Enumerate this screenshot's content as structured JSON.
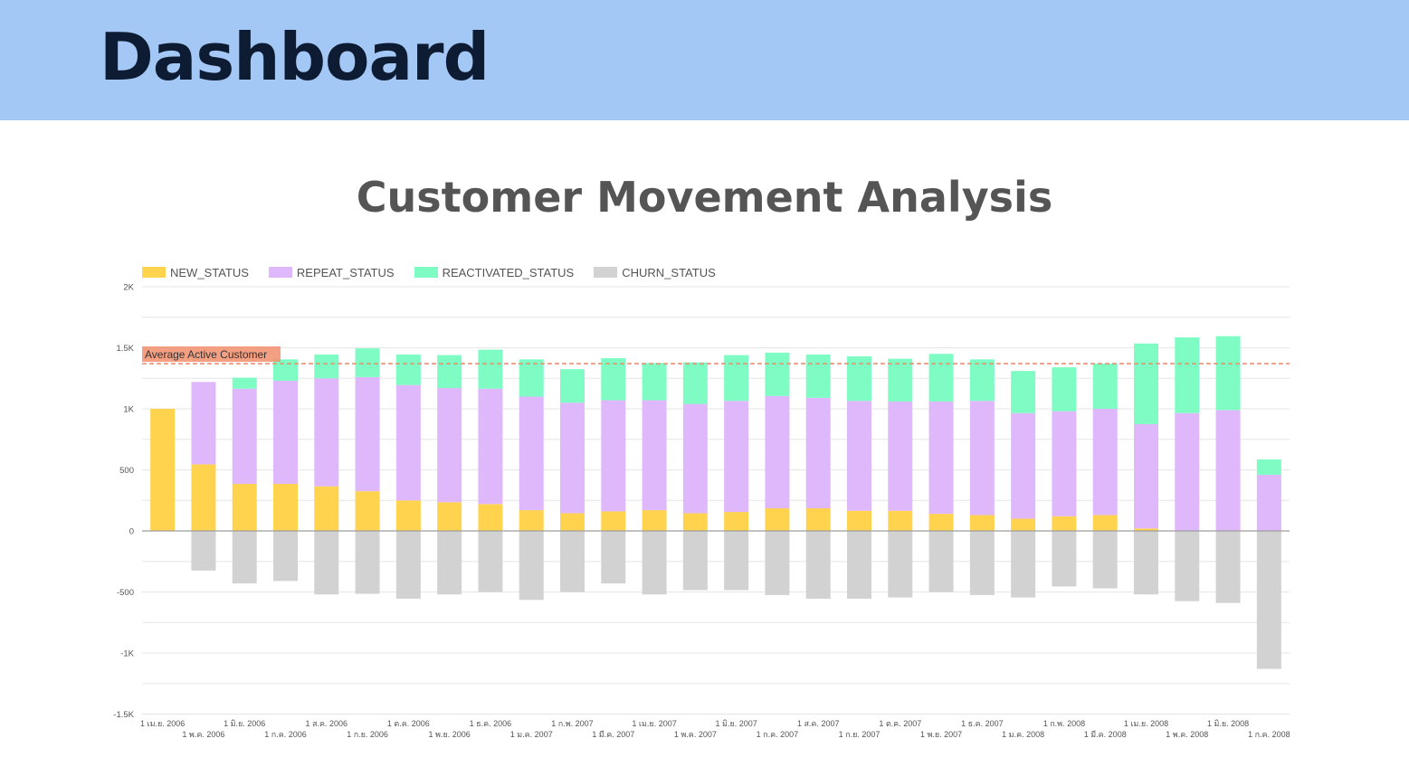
{
  "header": {
    "title": "Dashboard"
  },
  "colors": {
    "header_bg": "#a4c8f5",
    "new": "#ffd34e",
    "repeat": "#dfb8fb",
    "reactivated": "#7efcc4",
    "churn": "#d2d2d2",
    "average_line": "#f28e6b"
  },
  "chart_data": {
    "type": "bar",
    "stacked": true,
    "title": "Customer Movement Analysis",
    "xlabel": "",
    "ylabel": "",
    "ylim": [
      -1500,
      2000
    ],
    "yticks": [
      2000,
      1500,
      1000,
      500,
      0,
      -500,
      -1000,
      -1500
    ],
    "ytick_labels": [
      "2K",
      "1.5K",
      "1K",
      "500",
      "0",
      "-500",
      "-1K",
      "-1.5K"
    ],
    "grid": true,
    "legend_position": "top-left",
    "categories": [
      "1 เม.ย. 2006",
      "1 พ.ค. 2006",
      "1 มิ.ย. 2006",
      "1 ก.ค. 2006",
      "1 ส.ค. 2006",
      "1 ก.ย. 2006",
      "1 ต.ค. 2006",
      "1 พ.ย. 2006",
      "1 ธ.ค. 2006",
      "1 ม.ค. 2007",
      "1 ก.พ. 2007",
      "1 มี.ค. 2007",
      "1 เม.ย. 2007",
      "1 พ.ค. 2007",
      "1 มิ.ย. 2007",
      "1 ก.ค. 2007",
      "1 ส.ค. 2007",
      "1 ก.ย. 2007",
      "1 ต.ค. 2007",
      "1 พ.ย. 2007",
      "1 ธ.ค. 2007",
      "1 ม.ค. 2008",
      "1 ก.พ. 2008",
      "1 มี.ค. 2008",
      "1 เม.ย. 2008",
      "1 พ.ค. 2008",
      "1 มิ.ย. 2008",
      "1 ก.ค. 2008"
    ],
    "series": [
      {
        "name": "NEW_STATUS",
        "values": [
          1000,
          545,
          385,
          385,
          365,
          325,
          250,
          235,
          220,
          170,
          145,
          160,
          170,
          145,
          155,
          185,
          185,
          165,
          165,
          140,
          130,
          100,
          120,
          130,
          20,
          0,
          0,
          0
        ]
      },
      {
        "name": "REPEAT_STATUS",
        "values": [
          0,
          675,
          780,
          845,
          885,
          935,
          945,
          935,
          945,
          930,
          905,
          910,
          900,
          895,
          910,
          920,
          905,
          900,
          895,
          920,
          935,
          865,
          860,
          870,
          855,
          965,
          990,
          460
        ]
      },
      {
        "name": "REACTIVATED_STATUS",
        "values": [
          0,
          0,
          90,
          175,
          195,
          235,
          250,
          270,
          320,
          305,
          275,
          345,
          305,
          340,
          375,
          355,
          355,
          365,
          350,
          390,
          340,
          345,
          360,
          370,
          660,
          620,
          605,
          125
        ]
      },
      {
        "name": "CHURN_STATUS",
        "values": [
          0,
          -325,
          -430,
          -410,
          -520,
          -515,
          -555,
          -520,
          -500,
          -565,
          -500,
          -430,
          -520,
          -485,
          -485,
          -525,
          -555,
          -555,
          -545,
          -500,
          -525,
          -545,
          -455,
          -470,
          -520,
          -575,
          -590,
          -1130
        ]
      }
    ],
    "reference_line": {
      "label": "Average Active Customer",
      "value": 1370
    }
  }
}
